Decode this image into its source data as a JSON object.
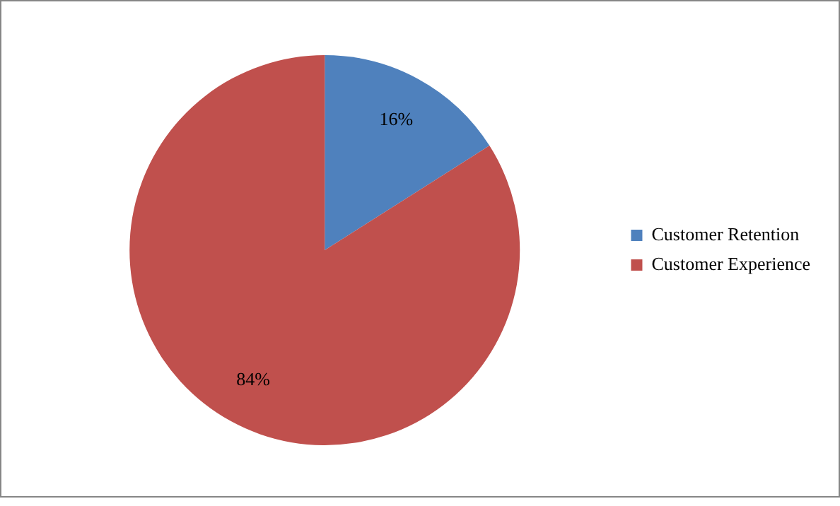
{
  "chart_data": {
    "type": "pie",
    "categories": [
      "Customer Retention",
      "Customer Experience"
    ],
    "values": [
      16,
      84
    ],
    "colors": [
      "#4f81bd",
      "#c0504d"
    ],
    "value_labels": [
      "16%",
      "84%"
    ],
    "legend": "right"
  }
}
